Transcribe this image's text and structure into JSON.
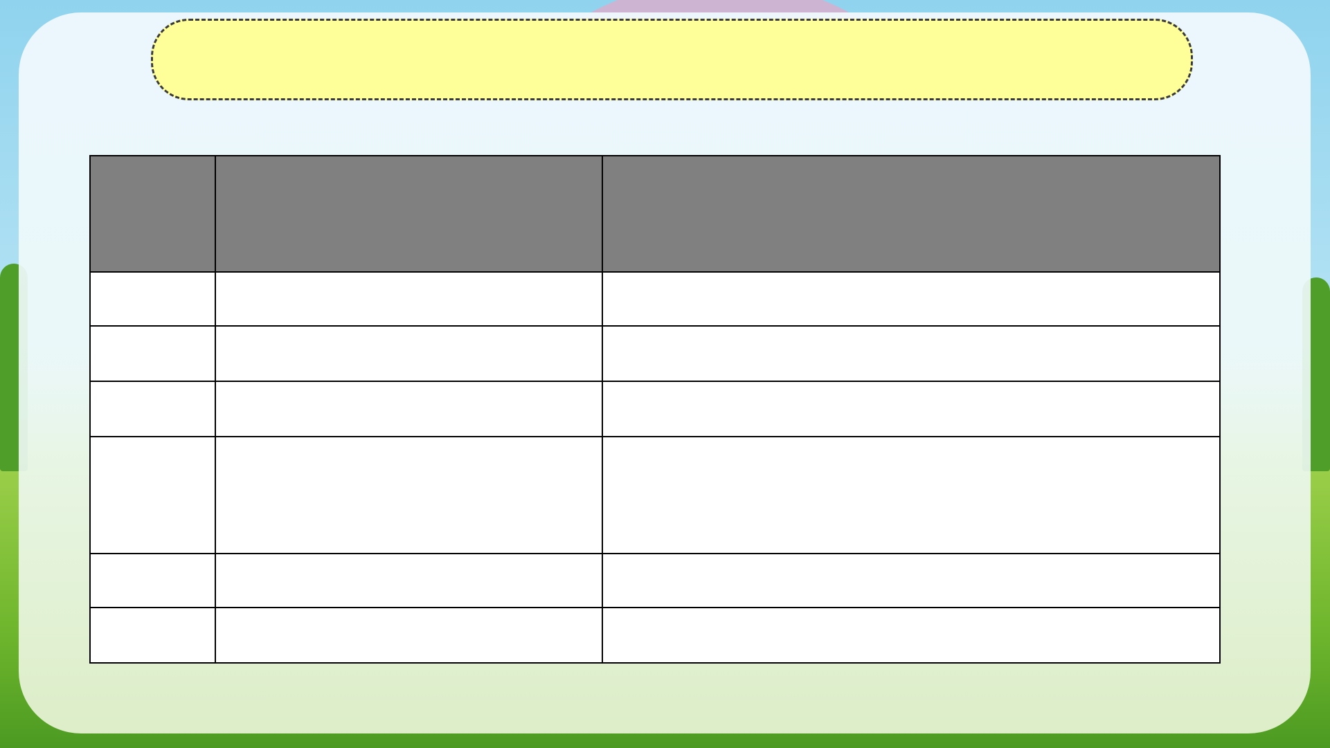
{
  "slide": {
    "title": "",
    "table": {
      "headers": [
        "",
        "",
        ""
      ],
      "rows": [
        [
          "",
          "",
          ""
        ],
        [
          "",
          "",
          ""
        ],
        [
          "",
          "",
          ""
        ],
        [
          "",
          "",
          ""
        ],
        [
          "",
          "",
          ""
        ],
        [
          "",
          "",
          ""
        ]
      ]
    },
    "colors": {
      "title_fill": "#ffff99",
      "header_fill": "#808080",
      "cell_fill": "#ffffff"
    }
  }
}
